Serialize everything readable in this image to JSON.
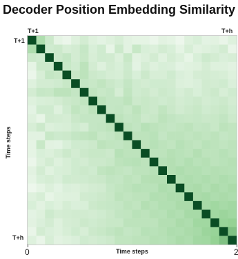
{
  "chart_data": {
    "type": "heatmap",
    "title": "Decoder Position Embedding Similarity",
    "xlabel": "Time steps",
    "ylabel": "Time steps",
    "x_start_label": "T+1",
    "x_end_label": "T+h",
    "y_start_label": "T+1",
    "y_end_label": "T+h",
    "x_ticks": [
      {
        "value": 0,
        "label": "0"
      },
      {
        "value": 2,
        "label": "2"
      }
    ],
    "xlim": [
      0,
      2
    ],
    "size": 24,
    "value_range": [
      0,
      1
    ],
    "colormap": {
      "low": "#f4faf3",
      "mid": "#8fd08f",
      "high": "#0a4d24"
    },
    "matrix": [
      [
        1.0,
        0.38,
        0.22,
        0.08,
        0.05,
        0.12,
        0.18,
        0.12,
        0.09,
        0.12,
        0.16,
        0.1,
        0.08,
        0.08,
        0.05,
        0.1,
        0.08,
        0.04,
        0.12,
        0.15,
        0.09,
        0.1,
        0.06,
        0.12
      ],
      [
        0.38,
        1.0,
        0.2,
        0.22,
        0.16,
        0.18,
        0.25,
        0.15,
        0.2,
        0.07,
        0.22,
        0.1,
        0.24,
        0.15,
        0.13,
        0.18,
        0.15,
        0.08,
        0.16,
        0.1,
        0.12,
        0.14,
        0.18,
        0.06
      ],
      [
        0.22,
        0.2,
        1.0,
        0.22,
        0.26,
        0.18,
        0.24,
        0.16,
        0.2,
        0.19,
        0.13,
        0.24,
        0.1,
        0.13,
        0.18,
        0.11,
        0.17,
        0.13,
        0.07,
        0.15,
        0.21,
        0.18,
        0.14,
        0.16
      ],
      [
        0.08,
        0.22,
        0.22,
        1.0,
        0.24,
        0.2,
        0.3,
        0.18,
        0.12,
        0.18,
        0.15,
        0.21,
        0.09,
        0.17,
        0.12,
        0.15,
        0.14,
        0.09,
        0.11,
        0.12,
        0.17,
        0.12,
        0.12,
        0.1
      ],
      [
        0.05,
        0.16,
        0.26,
        0.24,
        1.0,
        0.24,
        0.3,
        0.22,
        0.2,
        0.17,
        0.16,
        0.22,
        0.15,
        0.22,
        0.16,
        0.16,
        0.2,
        0.14,
        0.12,
        0.17,
        0.18,
        0.17,
        0.16,
        0.12
      ],
      [
        0.12,
        0.18,
        0.18,
        0.2,
        0.24,
        1.0,
        0.26,
        0.24,
        0.28,
        0.23,
        0.2,
        0.26,
        0.2,
        0.18,
        0.2,
        0.2,
        0.19,
        0.13,
        0.12,
        0.14,
        0.19,
        0.18,
        0.2,
        0.14
      ],
      [
        0.18,
        0.25,
        0.24,
        0.3,
        0.3,
        0.26,
        1.0,
        0.28,
        0.24,
        0.26,
        0.17,
        0.28,
        0.2,
        0.22,
        0.18,
        0.22,
        0.2,
        0.16,
        0.19,
        0.15,
        0.19,
        0.22,
        0.16,
        0.2
      ],
      [
        0.12,
        0.15,
        0.16,
        0.18,
        0.22,
        0.24,
        0.28,
        1.0,
        0.3,
        0.26,
        0.26,
        0.3,
        0.22,
        0.24,
        0.22,
        0.2,
        0.22,
        0.18,
        0.2,
        0.22,
        0.18,
        0.2,
        0.22,
        0.18
      ],
      [
        0.09,
        0.2,
        0.2,
        0.12,
        0.2,
        0.28,
        0.24,
        0.3,
        1.0,
        0.26,
        0.27,
        0.24,
        0.3,
        0.24,
        0.22,
        0.28,
        0.23,
        0.19,
        0.22,
        0.24,
        0.2,
        0.22,
        0.24,
        0.2
      ],
      [
        0.12,
        0.07,
        0.19,
        0.18,
        0.17,
        0.23,
        0.26,
        0.26,
        0.26,
        1.0,
        0.3,
        0.26,
        0.28,
        0.22,
        0.24,
        0.3,
        0.27,
        0.25,
        0.24,
        0.25,
        0.23,
        0.24,
        0.27,
        0.22
      ],
      [
        0.16,
        0.22,
        0.13,
        0.15,
        0.16,
        0.2,
        0.17,
        0.26,
        0.27,
        0.3,
        1.0,
        0.3,
        0.27,
        0.33,
        0.3,
        0.28,
        0.26,
        0.28,
        0.3,
        0.26,
        0.27,
        0.24,
        0.3,
        0.28
      ],
      [
        0.1,
        0.1,
        0.24,
        0.21,
        0.22,
        0.26,
        0.28,
        0.3,
        0.24,
        0.26,
        0.3,
        1.0,
        0.3,
        0.3,
        0.32,
        0.26,
        0.3,
        0.3,
        0.28,
        0.3,
        0.28,
        0.3,
        0.26,
        0.28
      ],
      [
        0.08,
        0.24,
        0.1,
        0.09,
        0.15,
        0.2,
        0.2,
        0.22,
        0.3,
        0.28,
        0.27,
        0.3,
        1.0,
        0.3,
        0.33,
        0.3,
        0.28,
        0.33,
        0.3,
        0.28,
        0.32,
        0.3,
        0.28,
        0.3
      ],
      [
        0.08,
        0.15,
        0.13,
        0.17,
        0.22,
        0.18,
        0.22,
        0.24,
        0.24,
        0.22,
        0.33,
        0.3,
        0.3,
        1.0,
        0.3,
        0.3,
        0.34,
        0.32,
        0.3,
        0.35,
        0.3,
        0.3,
        0.33,
        0.3
      ],
      [
        0.05,
        0.13,
        0.18,
        0.12,
        0.16,
        0.2,
        0.18,
        0.22,
        0.22,
        0.24,
        0.3,
        0.32,
        0.33,
        0.3,
        1.0,
        0.33,
        0.35,
        0.32,
        0.36,
        0.32,
        0.34,
        0.3,
        0.32,
        0.34
      ],
      [
        0.1,
        0.18,
        0.11,
        0.15,
        0.16,
        0.2,
        0.22,
        0.2,
        0.28,
        0.3,
        0.28,
        0.26,
        0.3,
        0.3,
        0.33,
        1.0,
        0.35,
        0.38,
        0.35,
        0.36,
        0.33,
        0.35,
        0.34,
        0.33
      ],
      [
        0.08,
        0.15,
        0.17,
        0.14,
        0.2,
        0.19,
        0.2,
        0.22,
        0.23,
        0.27,
        0.26,
        0.3,
        0.28,
        0.34,
        0.35,
        0.35,
        1.0,
        0.36,
        0.38,
        0.36,
        0.38,
        0.35,
        0.38,
        0.36
      ],
      [
        0.04,
        0.08,
        0.13,
        0.09,
        0.14,
        0.13,
        0.16,
        0.18,
        0.19,
        0.25,
        0.28,
        0.3,
        0.33,
        0.32,
        0.32,
        0.38,
        0.36,
        1.0,
        0.38,
        0.4,
        0.36,
        0.4,
        0.37,
        0.4
      ],
      [
        0.12,
        0.16,
        0.07,
        0.11,
        0.12,
        0.12,
        0.19,
        0.2,
        0.22,
        0.24,
        0.3,
        0.28,
        0.3,
        0.3,
        0.36,
        0.35,
        0.38,
        0.38,
        1.0,
        0.4,
        0.42,
        0.38,
        0.4,
        0.38
      ],
      [
        0.15,
        0.1,
        0.15,
        0.12,
        0.17,
        0.14,
        0.15,
        0.22,
        0.24,
        0.25,
        0.26,
        0.3,
        0.28,
        0.35,
        0.32,
        0.36,
        0.36,
        0.4,
        0.4,
        1.0,
        0.42,
        0.45,
        0.42,
        0.44
      ],
      [
        0.09,
        0.12,
        0.21,
        0.17,
        0.18,
        0.19,
        0.19,
        0.18,
        0.2,
        0.23,
        0.27,
        0.28,
        0.32,
        0.3,
        0.34,
        0.33,
        0.38,
        0.36,
        0.42,
        0.42,
        1.0,
        0.45,
        0.48,
        0.45
      ],
      [
        0.1,
        0.14,
        0.18,
        0.12,
        0.17,
        0.18,
        0.22,
        0.2,
        0.22,
        0.24,
        0.24,
        0.3,
        0.3,
        0.3,
        0.3,
        0.35,
        0.35,
        0.4,
        0.38,
        0.45,
        0.45,
        1.0,
        0.5,
        0.52
      ],
      [
        0.06,
        0.18,
        0.14,
        0.12,
        0.16,
        0.2,
        0.16,
        0.22,
        0.24,
        0.27,
        0.3,
        0.26,
        0.28,
        0.33,
        0.32,
        0.34,
        0.38,
        0.37,
        0.4,
        0.42,
        0.48,
        0.5,
        1.0,
        0.6
      ],
      [
        0.12,
        0.06,
        0.16,
        0.1,
        0.12,
        0.14,
        0.2,
        0.18,
        0.2,
        0.22,
        0.28,
        0.28,
        0.3,
        0.3,
        0.34,
        0.33,
        0.36,
        0.4,
        0.38,
        0.44,
        0.45,
        0.52,
        0.6,
        1.0
      ]
    ]
  }
}
